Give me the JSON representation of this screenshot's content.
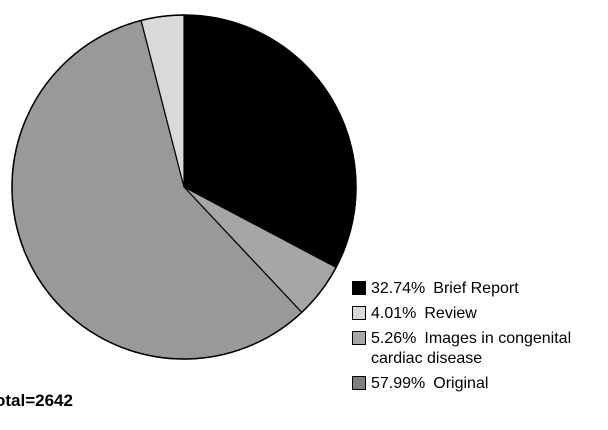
{
  "chart_data": {
    "type": "pie",
    "start_angle_deg": 0,
    "direction": "clockwise",
    "slices": [
      {
        "label": "Brief Report",
        "percent_text": "32.74%",
        "value": 32.74,
        "color": "#000000"
      },
      {
        "label": "Images in congenital cardiac disease",
        "percent_text": "5.26%",
        "value": 5.26,
        "color": "#a6a6a6"
      },
      {
        "label": "Original",
        "percent_text": "57.99%",
        "value": 57.99,
        "color": "#999999"
      },
      {
        "label": "Review",
        "percent_text": "4.01%",
        "value": 4.01,
        "color": "#d9d9d9"
      }
    ],
    "legend": [
      {
        "percent_text": "32.74%",
        "label": "Brief Report",
        "color": "#000000"
      },
      {
        "percent_text": "4.01%",
        "label": "Review",
        "color": "#d9d9d9"
      },
      {
        "percent_text": "5.26%",
        "label": "Images in congenital cardiac disease",
        "color": "#a6a6a6"
      },
      {
        "percent_text": "57.99%",
        "label": "Original",
        "color": "#7f7f7f"
      }
    ],
    "legend_placement": "bottom-right",
    "total_text": "otal=2642"
  }
}
